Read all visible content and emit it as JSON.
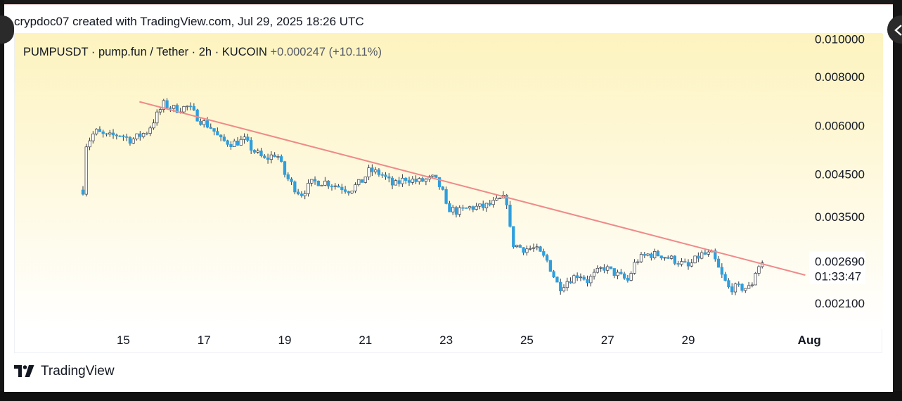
{
  "header": {
    "credit": "crypdoc07 created with TradingView.com, Jul 29, 2025 18:26 UTC"
  },
  "nav": {
    "prev_icon": "chevron-left",
    "next_icon": "chevron-left-outline"
  },
  "footer": {
    "brand": "TradingView",
    "logo_icon": "tv-logo-icon"
  },
  "colors": {
    "up_candle": "#ffffff",
    "down_candle": "#2e9fde",
    "wick": "#363a45",
    "trendline": "#ef8a8a",
    "background_top": "#fdf3bf",
    "background_bottom": "#ffffff"
  },
  "chart_data": {
    "type": "candlestick",
    "legend": {
      "symbol": "PUMPUSDT",
      "description": "pump.fun / Tether",
      "interval": "2h",
      "exchange": "KUCOIN",
      "change": "+0.000247",
      "change_pct": "(+10.11%)"
    },
    "y_scale": "log",
    "y_axis_ticks": [
      {
        "value": 0.01,
        "label": "0.010000"
      },
      {
        "value": 0.008,
        "label": "0.008000"
      },
      {
        "value": 0.006,
        "label": "0.006000"
      },
      {
        "value": 0.0045,
        "label": "0.004500"
      },
      {
        "value": 0.0035,
        "label": "0.003500"
      },
      {
        "value": 0.0021,
        "label": "0.002100"
      }
    ],
    "last_price": {
      "value": 0.00269,
      "label": "0.002690",
      "countdown": "01:33:47"
    },
    "x_axis_ticks": [
      {
        "day": 15,
        "label": "15",
        "bold": false
      },
      {
        "day": 17,
        "label": "17",
        "bold": false
      },
      {
        "day": 19,
        "label": "19",
        "bold": false
      },
      {
        "day": 21,
        "label": "21",
        "bold": false
      },
      {
        "day": 23,
        "label": "23",
        "bold": false
      },
      {
        "day": 25,
        "label": "25",
        "bold": false
      },
      {
        "day": 27,
        "label": "27",
        "bold": false
      },
      {
        "day": 29,
        "label": "29",
        "bold": false
      },
      {
        "day": 32,
        "label": "Aug",
        "bold": true
      }
    ],
    "x_range_days": [
      14.0,
      33.5
    ],
    "y_range": [
      0.0019,
      0.0107
    ],
    "trendline": {
      "from": {
        "day": 15.4,
        "price": 0.0069
      },
      "to": {
        "day": 31.9,
        "price": 0.00248
      }
    },
    "close_path": [
      [
        14.0,
        0.0041
      ],
      [
        14.05,
        0.0053
      ],
      [
        14.3,
        0.0058
      ],
      [
        14.6,
        0.0056
      ],
      [
        14.9,
        0.0057
      ],
      [
        15.2,
        0.0055
      ],
      [
        15.6,
        0.0058
      ],
      [
        15.8,
        0.0063
      ],
      [
        16.0,
        0.0068
      ],
      [
        16.3,
        0.0066
      ],
      [
        16.6,
        0.0067
      ],
      [
        16.9,
        0.0062
      ],
      [
        17.2,
        0.0059
      ],
      [
        17.4,
        0.0055
      ],
      [
        17.7,
        0.0054
      ],
      [
        18.0,
        0.0055
      ],
      [
        18.2,
        0.0052
      ],
      [
        18.5,
        0.0049
      ],
      [
        18.8,
        0.0051
      ],
      [
        19.0,
        0.0045
      ],
      [
        19.2,
        0.0042
      ],
      [
        19.4,
        0.004
      ],
      [
        19.7,
        0.0043
      ],
      [
        20.0,
        0.0043
      ],
      [
        20.3,
        0.0042
      ],
      [
        20.6,
        0.0041
      ],
      [
        20.9,
        0.0043
      ],
      [
        21.1,
        0.0046
      ],
      [
        21.4,
        0.0045
      ],
      [
        21.7,
        0.0042
      ],
      [
        22.0,
        0.0044
      ],
      [
        22.3,
        0.0043
      ],
      [
        22.7,
        0.0044
      ],
      [
        22.9,
        0.0041
      ],
      [
        23.0,
        0.0037
      ],
      [
        23.3,
        0.0036
      ],
      [
        23.6,
        0.0037
      ],
      [
        23.9,
        0.0037
      ],
      [
        24.2,
        0.0038
      ],
      [
        24.4,
        0.0039
      ],
      [
        24.55,
        0.0038
      ],
      [
        24.6,
        0.003
      ],
      [
        24.9,
        0.0029
      ],
      [
        25.2,
        0.0029
      ],
      [
        25.5,
        0.0027
      ],
      [
        25.8,
        0.0023
      ],
      [
        26.0,
        0.0024
      ],
      [
        26.3,
        0.0025
      ],
      [
        26.5,
        0.0024
      ],
      [
        26.9,
        0.0026
      ],
      [
        27.2,
        0.0025
      ],
      [
        27.5,
        0.0024
      ],
      [
        27.7,
        0.0027
      ],
      [
        28.0,
        0.0028
      ],
      [
        28.3,
        0.0028
      ],
      [
        28.7,
        0.0027
      ],
      [
        29.0,
        0.0026
      ],
      [
        29.3,
        0.0028
      ],
      [
        29.6,
        0.0028
      ],
      [
        29.8,
        0.0025
      ],
      [
        30.0,
        0.0023
      ],
      [
        30.2,
        0.0023
      ],
      [
        30.4,
        0.0023
      ],
      [
        30.55,
        0.0023
      ],
      [
        30.7,
        0.0026
      ],
      [
        30.9,
        0.0027
      ]
    ]
  }
}
